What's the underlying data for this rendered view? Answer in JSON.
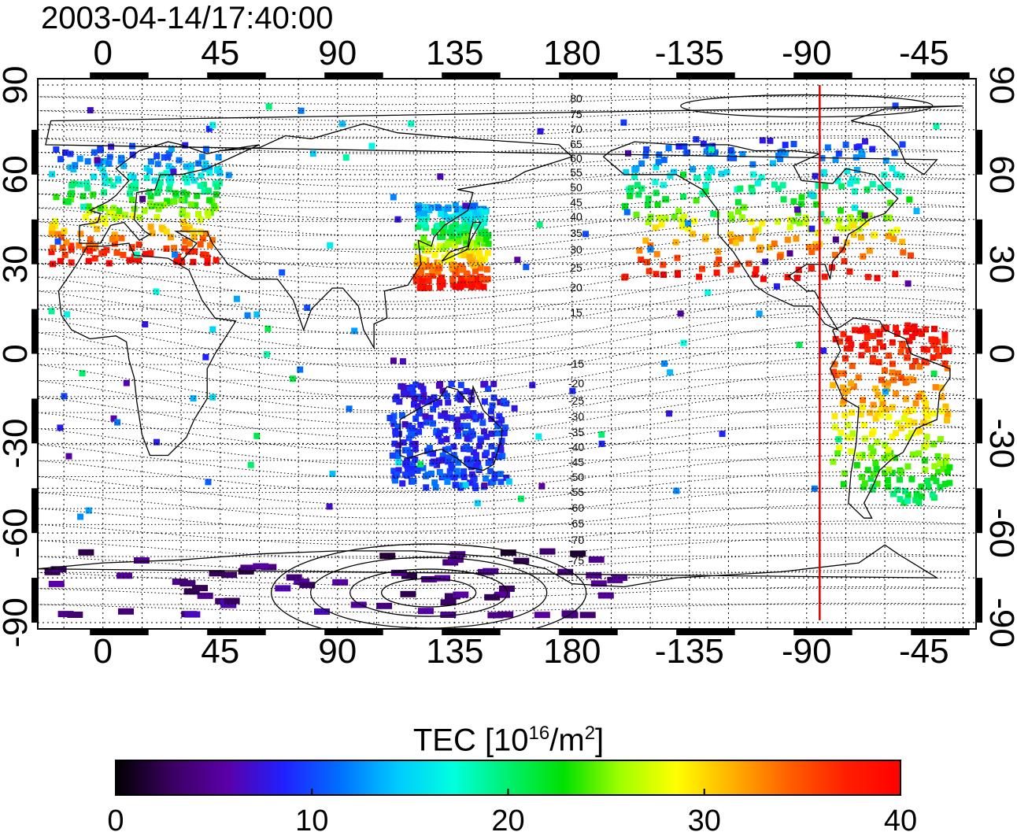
{
  "timestamp": "2003-04-14/17:40:00",
  "map": {
    "lon_ticks": [
      "0",
      "45",
      "90",
      "135",
      "180",
      "-135",
      "-90",
      "-45"
    ],
    "lat_ticks": [
      "90",
      "60",
      "30",
      "0",
      "-30",
      "-60",
      "-90"
    ],
    "contour_labels_north": [
      "80",
      "75",
      "70",
      "65",
      "60",
      "55",
      "50",
      "45",
      "40",
      "35",
      "30",
      "25",
      "20",
      "15"
    ],
    "contour_labels_south": [
      "-15",
      "-20",
      "-25",
      "-30",
      "-35",
      "-40",
      "-45",
      "-50",
      "-55",
      "-60",
      "-65",
      "-70",
      "-75"
    ],
    "marker_longitude": -85,
    "marker_color": "#e00000"
  },
  "colorbar": {
    "title_prefix": "TEC  [10",
    "title_sup1": "16",
    "title_mid": "/m",
    "title_sup2": "2",
    "title_suffix": "]",
    "min": 0,
    "max": 40,
    "ticks": [
      "0",
      "10",
      "20",
      "30",
      "40"
    ],
    "colors": [
      "#000000",
      "#3a0060",
      "#5a00a8",
      "#2020ff",
      "#0070ff",
      "#00c8ff",
      "#00ffe0",
      "#00f070",
      "#00e000",
      "#a0ff00",
      "#ffff00",
      "#ffb000",
      "#ff6000",
      "#ff2000",
      "#ff0000"
    ]
  },
  "tec_regions": [
    {
      "name": "europe",
      "lon": [
        -20,
        45
      ],
      "lat": [
        30,
        70
      ],
      "tec": [
        40,
        8
      ]
    },
    {
      "name": "north-america",
      "lon": [
        -160,
        -50
      ],
      "lat": [
        25,
        72
      ],
      "tec": [
        40,
        8
      ]
    },
    {
      "name": "east-asia",
      "lon": [
        120,
        148
      ],
      "lat": [
        22,
        50
      ],
      "tec": [
        40,
        12
      ]
    },
    {
      "name": "south-america",
      "lon": [
        -80,
        -35
      ],
      "lat": [
        -50,
        10
      ],
      "tec": [
        20,
        40
      ]
    },
    {
      "name": "australia",
      "lon": [
        110,
        155
      ],
      "lat": [
        -45,
        -10
      ],
      "tec": [
        10,
        8
      ]
    },
    {
      "name": "antarctica",
      "lon": [
        -20,
        200
      ],
      "lat": [
        -88,
        -65
      ],
      "tec": [
        5,
        3
      ]
    }
  ]
}
